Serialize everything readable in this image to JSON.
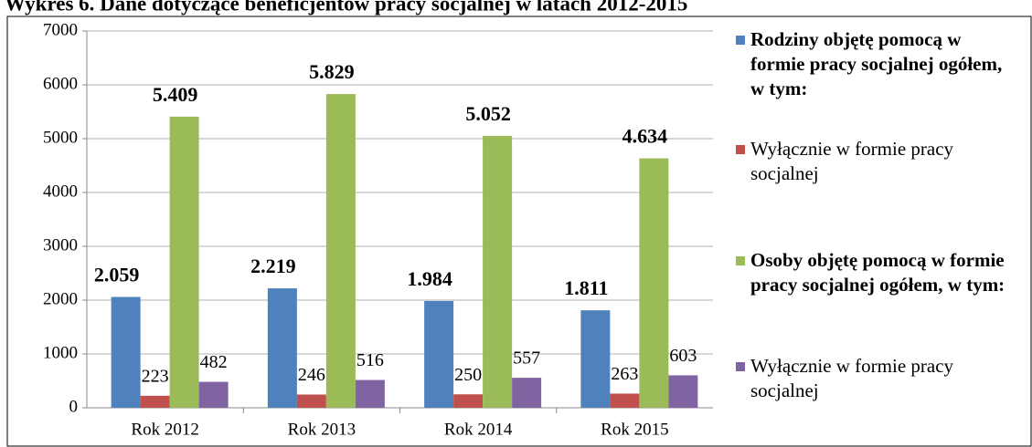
{
  "chart_data": {
    "type": "bar",
    "title": "Wykres 6. Dane dotyczące beneficjentów pracy socjalnej w latach 2012-2015",
    "categories": [
      "Rok 2012",
      "Rok 2013",
      "Rok 2014",
      "Rok 2015"
    ],
    "series": [
      {
        "name": "Rodziny objętę pomocą w formie pracy socjalnej ogółem, w tym:",
        "color": "#4f81bd",
        "values": [
          2059,
          2219,
          1984,
          1811
        ],
        "value_labels": [
          "2.059",
          "2.219",
          "1.984",
          "1.811"
        ],
        "label_weight": "bold"
      },
      {
        "name": "Wyłącznie w formie pracy socjalnej",
        "color": "#c0504d",
        "values": [
          223,
          246,
          250,
          263
        ],
        "label_weight": "normal"
      },
      {
        "name": "Osoby objętę pomocą w formie pracy socjalnej ogółem, w tym:",
        "color": "#9bbb59",
        "values": [
          5409,
          5829,
          5052,
          4634
        ],
        "value_labels": [
          "5.409",
          "5.829",
          "5.052",
          "4.634"
        ],
        "label_weight": "bold"
      },
      {
        "name": "Wyłącznie w formie pracy socjalnej",
        "color": "#8064a2",
        "values": [
          482,
          516,
          557,
          603
        ],
        "label_weight": "normal"
      }
    ],
    "ylim": [
      0,
      7000
    ],
    "yticks": [
      0,
      1000,
      2000,
      3000,
      4000,
      5000,
      6000,
      7000
    ],
    "grid": true
  }
}
